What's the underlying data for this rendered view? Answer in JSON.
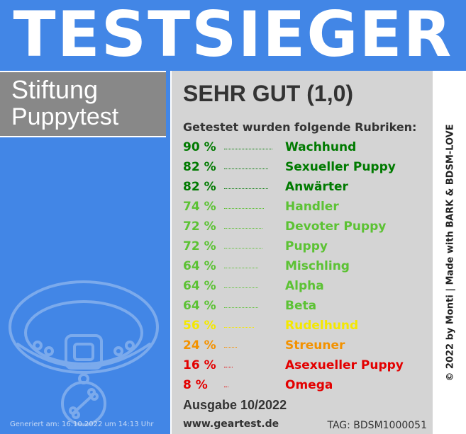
{
  "title": "TESTSIEGER",
  "brand": {
    "line1": "Stiftung",
    "line2": "Puppytest"
  },
  "grade": "SEHR GUT (1,0)",
  "subtitle": "Getestet wurden folgende Rubriken:",
  "rubrics": [
    {
      "pct": "90 %",
      "label": "Wachhund",
      "value": 90,
      "color": "#007a00"
    },
    {
      "pct": "82 %",
      "label": "Sexueller Puppy",
      "value": 82,
      "color": "#007a00"
    },
    {
      "pct": "82 %",
      "label": "Anwärter",
      "value": 82,
      "color": "#007a00"
    },
    {
      "pct": "74 %",
      "label": "Handler",
      "value": 74,
      "color": "#5cc234"
    },
    {
      "pct": "72 %",
      "label": "Devoter Puppy",
      "value": 72,
      "color": "#5cc234"
    },
    {
      "pct": "72 %",
      "label": "Puppy",
      "value": 72,
      "color": "#5cc234"
    },
    {
      "pct": "64 %",
      "label": "Mischling",
      "value": 64,
      "color": "#5cc234"
    },
    {
      "pct": "64 %",
      "label": "Alpha",
      "value": 64,
      "color": "#5cc234"
    },
    {
      "pct": "64 %",
      "label": "Beta",
      "value": 64,
      "color": "#5cc234"
    },
    {
      "pct": "56 %",
      "label": "Rudelhund",
      "value": 56,
      "color": "#f4e800"
    },
    {
      "pct": "24 %",
      "label": "Streuner",
      "value": 24,
      "color": "#f39200"
    },
    {
      "pct": "16 %",
      "label": "Asexueller Puppy",
      "value": 16,
      "color": "#e30000"
    },
    {
      "pct": "8 %",
      "label": "Omega",
      "value": 8,
      "color": "#e30000"
    }
  ],
  "issue": "Ausgabe 10/2022",
  "url": "www.geartest.de",
  "tag": "TAG: BDSM1000051",
  "credits": "© 2022 by Monti | Made with BARK & BDSM-LOVE",
  "generated": "Generiert am: 16.10.2022 um 14:13 Uhr",
  "icon": "dog-collar-icon"
}
